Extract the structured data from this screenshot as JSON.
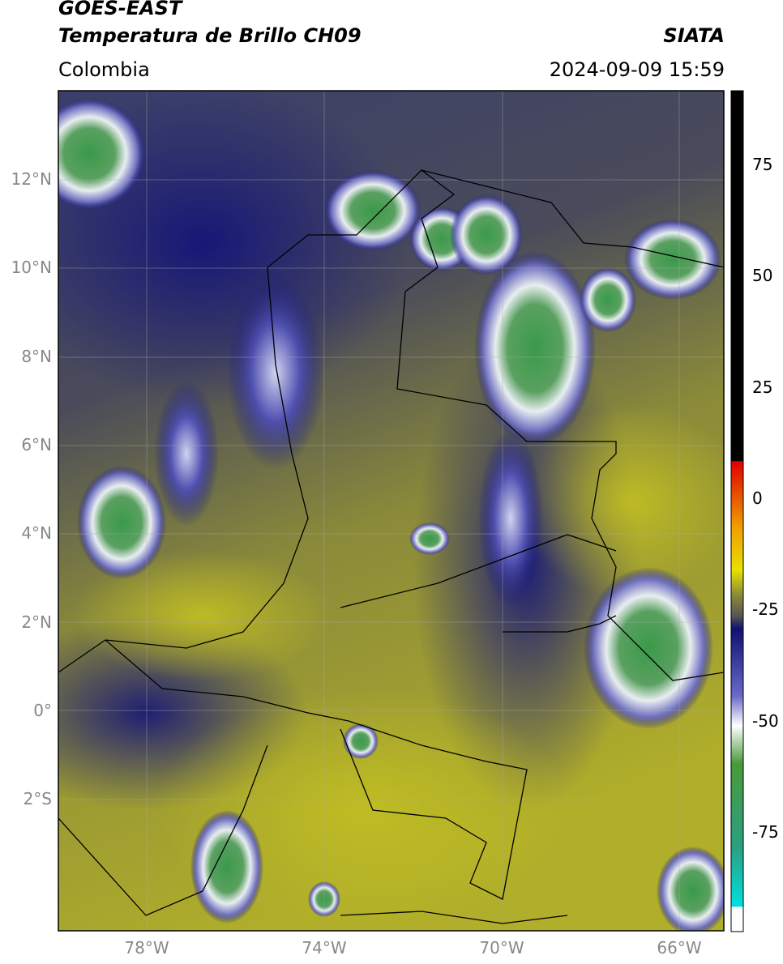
{
  "header": {
    "satellite": "GOES-EAST",
    "product": "Temperatura de Brillo CH09",
    "source": "SIATA",
    "region": "Colombia",
    "timestamp": "2024-09-09 15:59"
  },
  "map": {
    "lat_labels": [
      "12°N",
      "10°N",
      "8°N",
      "6°N",
      "4°N",
      "2°N",
      "0°",
      "2°S"
    ],
    "lon_labels": [
      "78°W",
      "74°W",
      "70°W",
      "66°W"
    ]
  },
  "colorbar": {
    "tick_labels": [
      "75",
      "50",
      "25",
      "0",
      "-25",
      "-50",
      "-75"
    ]
  }
}
